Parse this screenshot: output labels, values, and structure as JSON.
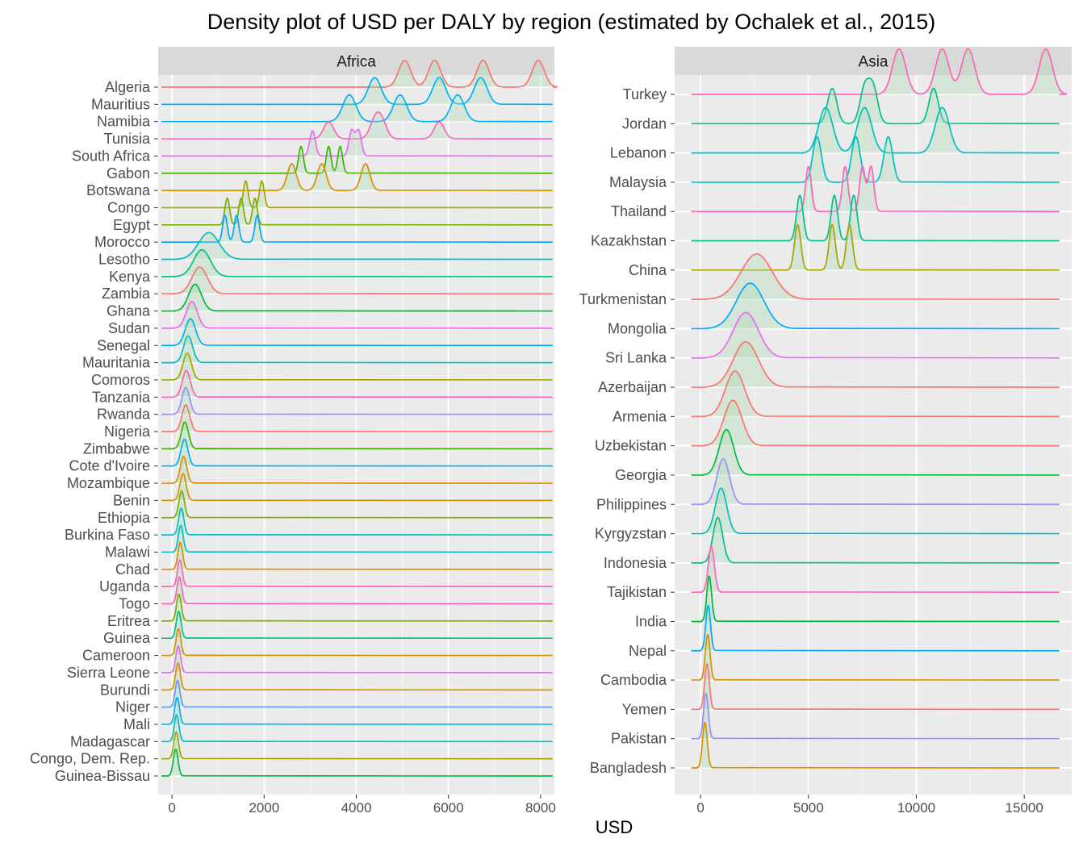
{
  "chart_data": {
    "type": "ridgeline-density",
    "title": "Density plot of USD per DALY by region (estimated by Ochalek et al., 2015)",
    "xlabel": "USD",
    "ylabel": "",
    "grid": true,
    "legend": "none",
    "panels": [
      {
        "name": "Africa",
        "xlim": [
          -300,
          8300
        ],
        "xticks": [
          0,
          2000,
          4000,
          6000,
          8000
        ],
        "xtick_labels": [
          "0",
          "2000",
          "4000",
          "6000",
          "8000"
        ],
        "countries": [
          {
            "name": "Algeria",
            "color": "#F8766D",
            "peaks": [
              5050,
              5700,
              6750,
              7950
            ]
          },
          {
            "name": "Mauritius",
            "color": "#00B0F6",
            "peaks": [
              4400,
              5800,
              6700
            ]
          },
          {
            "name": "Namibia",
            "color": "#00B0F6",
            "peaks": [
              3850,
              4950,
              6200
            ]
          },
          {
            "name": "Tunisia",
            "color": "#FF62BC",
            "peaks": [
              3400,
              4400,
              4550,
              5800
            ]
          },
          {
            "name": "South Africa",
            "color": "#E76BF3",
            "peaks": [
              3050,
              3900,
              4050
            ]
          },
          {
            "name": "Gabon",
            "color": "#39B600",
            "peaks": [
              2800,
              3400,
              3650
            ]
          },
          {
            "name": "Botswana",
            "color": "#D89000",
            "peaks": [
              2600,
              3250,
              4200
            ]
          },
          {
            "name": "Congo",
            "color": "#A3A500",
            "peaks": [
              1600,
              1950
            ]
          },
          {
            "name": "Egypt",
            "color": "#7CAE00",
            "peaks": [
              1200,
              1500,
              1800
            ]
          },
          {
            "name": "Morocco",
            "color": "#00A9FF",
            "peaks": [
              1150,
              1400,
              1850
            ]
          },
          {
            "name": "Lesotho",
            "color": "#00BFC4",
            "peaks": [
              800
            ]
          },
          {
            "name": "Kenya",
            "color": "#00C08B",
            "peaks": [
              650
            ]
          },
          {
            "name": "Zambia",
            "color": "#F8766D",
            "peaks": [
              600
            ]
          },
          {
            "name": "Ghana",
            "color": "#00BA38",
            "peaks": [
              500
            ]
          },
          {
            "name": "Sudan",
            "color": "#E76BF3",
            "peaks": [
              430
            ]
          },
          {
            "name": "Senegal",
            "color": "#00B0F6",
            "peaks": [
              400
            ]
          },
          {
            "name": "Mauritania",
            "color": "#00BFC4",
            "peaks": [
              350
            ]
          },
          {
            "name": "Comoros",
            "color": "#A3A500",
            "peaks": [
              330
            ]
          },
          {
            "name": "Tanzania",
            "color": "#FF62BC",
            "peaks": [
              310
            ]
          },
          {
            "name": "Rwanda",
            "color": "#9590FF",
            "peaks": [
              300
            ]
          },
          {
            "name": "Nigeria",
            "color": "#F8766D",
            "peaks": [
              300
            ]
          },
          {
            "name": "Zimbabwe",
            "color": "#39B600",
            "peaks": [
              280
            ]
          },
          {
            "name": "Cote d'Ivoire",
            "color": "#00B0F6",
            "peaks": [
              270
            ]
          },
          {
            "name": "Mozambique",
            "color": "#D89000",
            "peaks": [
              250
            ]
          },
          {
            "name": "Benin",
            "color": "#D89000",
            "peaks": [
              240
            ]
          },
          {
            "name": "Ethiopia",
            "color": "#7CAE00",
            "peaks": [
              210
            ]
          },
          {
            "name": "Burkina Faso",
            "color": "#00BFC4",
            "peaks": [
              200
            ]
          },
          {
            "name": "Malawi",
            "color": "#00BFC4",
            "peaks": [
              190
            ]
          },
          {
            "name": "Chad",
            "color": "#D89000",
            "peaks": [
              180
            ]
          },
          {
            "name": "Uganda",
            "color": "#FF62BC",
            "peaks": [
              170
            ]
          },
          {
            "name": "Togo",
            "color": "#FF62BC",
            "peaks": [
              160
            ]
          },
          {
            "name": "Eritrea",
            "color": "#7CAE00",
            "peaks": [
              150
            ]
          },
          {
            "name": "Guinea",
            "color": "#00C08B",
            "peaks": [
              145
            ]
          },
          {
            "name": "Cameroon",
            "color": "#D89000",
            "peaks": [
              140
            ]
          },
          {
            "name": "Sierra Leone",
            "color": "#E76BF3",
            "peaks": [
              135
            ]
          },
          {
            "name": "Burundi",
            "color": "#D89000",
            "peaks": [
              130
            ]
          },
          {
            "name": "Niger",
            "color": "#619CFF",
            "peaks": [
              120
            ]
          },
          {
            "name": "Mali",
            "color": "#00B0F6",
            "peaks": [
              110
            ]
          },
          {
            "name": "Madagascar",
            "color": "#00BFC4",
            "peaks": [
              100
            ]
          },
          {
            "name": "Congo, Dem. Rep.",
            "color": "#A3A500",
            "peaks": [
              90
            ]
          },
          {
            "name": "Guinea-Bissau",
            "color": "#00BA38",
            "peaks": [
              80
            ]
          }
        ]
      },
      {
        "name": "Asia",
        "xlim": [
          -1200,
          17200
        ],
        "xticks": [
          0,
          5000,
          10000,
          15000
        ],
        "xtick_labels": [
          "0",
          "5000",
          "10000",
          "15000"
        ],
        "countries": [
          {
            "name": "Turkey",
            "color": "#FF62BC",
            "peaks": [
              9200,
              11200,
              12400,
              16000
            ]
          },
          {
            "name": "Jordan",
            "color": "#00C08B",
            "peaks": [
              6100,
              7600,
              8000,
              10800
            ]
          },
          {
            "name": "Lebanon",
            "color": "#00BFC4",
            "peaks": [
              5800,
              7600,
              11200
            ]
          },
          {
            "name": "Malaysia",
            "color": "#00BFC4",
            "peaks": [
              5400,
              7200,
              8700
            ]
          },
          {
            "name": "Thailand",
            "color": "#FF62BC",
            "peaks": [
              5000,
              6700,
              7500,
              7900
            ]
          },
          {
            "name": "Kazakhstan",
            "color": "#00C08B",
            "peaks": [
              4600,
              6200,
              7100
            ]
          },
          {
            "name": "China",
            "color": "#A3A500",
            "peaks": [
              4500,
              6100,
              6900
            ]
          },
          {
            "name": "Turkmenistan",
            "color": "#F8766D",
            "peaks": [
              2600
            ]
          },
          {
            "name": "Mongolia",
            "color": "#00A9FF",
            "peaks": [
              2300
            ]
          },
          {
            "name": "Sri Lanka",
            "color": "#E76BF3",
            "peaks": [
              2100
            ]
          },
          {
            "name": "Azerbaijan",
            "color": "#F8766D",
            "peaks": [
              2100
            ]
          },
          {
            "name": "Armenia",
            "color": "#F8766D",
            "peaks": [
              1600
            ]
          },
          {
            "name": "Uzbekistan",
            "color": "#F8766D",
            "peaks": [
              1500
            ]
          },
          {
            "name": "Georgia",
            "color": "#00BA38",
            "peaks": [
              1200
            ]
          },
          {
            "name": "Philippines",
            "color": "#9590FF",
            "peaks": [
              1050
            ]
          },
          {
            "name": "Kyrgyzstan",
            "color": "#00BFC4",
            "peaks": [
              950
            ]
          },
          {
            "name": "Indonesia",
            "color": "#00C08B",
            "peaks": [
              800
            ]
          },
          {
            "name": "Tajikistan",
            "color": "#FF62BC",
            "peaks": [
              500
            ]
          },
          {
            "name": "India",
            "color": "#00BA38",
            "peaks": [
              400
            ]
          },
          {
            "name": "Nepal",
            "color": "#00A9FF",
            "peaks": [
              350
            ]
          },
          {
            "name": "Cambodia",
            "color": "#D89000",
            "peaks": [
              330
            ]
          },
          {
            "name": "Yemen",
            "color": "#F8766D",
            "peaks": [
              300
            ]
          },
          {
            "name": "Pakistan",
            "color": "#9590FF",
            "peaks": [
              250
            ]
          },
          {
            "name": "Bangladesh",
            "color": "#D89000",
            "peaks": [
              200
            ]
          }
        ]
      }
    ]
  }
}
